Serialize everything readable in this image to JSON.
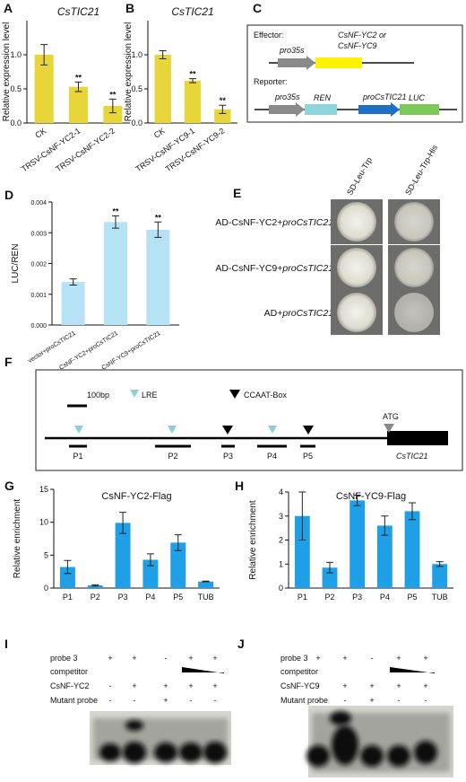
{
  "chart_data": [
    {
      "type": "bar",
      "panel": "A",
      "title": "CsTIC21",
      "y_label": "Relative expression level",
      "categories": [
        "CK",
        "TRSV-CsNF-YC2-1",
        "TRSV-CsNF-YC2-2"
      ],
      "values": [
        1.0,
        0.53,
        0.25
      ],
      "errors": [
        0.15,
        0.07,
        0.1
      ],
      "significance": [
        null,
        "**",
        "**"
      ],
      "color": "#e8d53a",
      "ylim": [
        0,
        1.5
      ],
      "yticks": [
        {
          "value": 0,
          "label": "0.0"
        },
        {
          "value": 0.5,
          "label": "0.5"
        },
        {
          "value": 1,
          "label": "1.0"
        }
      ]
    },
    {
      "type": "bar",
      "panel": "B",
      "title": "CsTIC21",
      "y_label": "Relative expression level",
      "categories": [
        "CK",
        "TRSV-CsNF-YC9-1",
        "TRSV-CsNF-YC9-2"
      ],
      "values": [
        1.0,
        0.62,
        0.2
      ],
      "errors": [
        0.06,
        0.03,
        0.06
      ],
      "significance": [
        null,
        "**",
        "**"
      ],
      "color": "#e8d53a",
      "ylim": [
        0,
        1.5
      ],
      "yticks": [
        {
          "value": 0,
          "label": "0.0"
        },
        {
          "value": 0.5,
          "label": "0.5"
        },
        {
          "value": 1,
          "label": "1.0"
        }
      ]
    },
    {
      "type": "bar",
      "panel": "D",
      "y_label": "LUC/REN",
      "categories": [
        "vector+proCsTIC21",
        "CsNF-YC2+proCsTIC21",
        "CsNF-YC9+proCsTIC21"
      ],
      "values": [
        0.0014,
        0.00335,
        0.0031
      ],
      "errors": [
        0.0001,
        0.0002,
        0.00025
      ],
      "significance": [
        null,
        "**",
        "**"
      ],
      "color": "#b5e3f5",
      "ylim": [
        0,
        0.004
      ],
      "yticks": [
        {
          "value": 0,
          "label": "0.000"
        },
        {
          "value": 0.001,
          "label": "0.001"
        },
        {
          "value": 0.002,
          "label": "0.002"
        },
        {
          "value": 0.003,
          "label": "0.003"
        },
        {
          "value": 0.004,
          "label": "0.004"
        }
      ]
    },
    {
      "type": "bar",
      "panel": "G",
      "title": "CsNF-YC2-Flag",
      "y_label": "Relative enrichment",
      "categories": [
        "P1",
        "P2",
        "P3",
        "P4",
        "P5",
        "TUB"
      ],
      "values": [
        3.2,
        0.4,
        9.9,
        4.3,
        6.9,
        1.0
      ],
      "errors": [
        1.0,
        0.1,
        1.6,
        0.9,
        1.2,
        0.05
      ],
      "color": "#1f9fe6",
      "ylim": [
        0,
        15
      ],
      "yticks": [
        0,
        5,
        10,
        15
      ]
    },
    {
      "type": "bar",
      "panel": "H",
      "title": "CsNF-YC9-Flag",
      "y_label": "Relative enrichment",
      "categories": [
        "P1",
        "P2",
        "P3",
        "P4",
        "P5",
        "TUB"
      ],
      "values": [
        3.0,
        0.85,
        3.65,
        2.6,
        3.2,
        1.0
      ],
      "errors": [
        1.0,
        0.22,
        0.22,
        0.4,
        0.35,
        0.1
      ],
      "color": "#1f9fe6",
      "ylim": [
        0,
        4
      ],
      "yticks": [
        0,
        1,
        2,
        3,
        4
      ]
    }
  ],
  "constructs": {
    "panel": "C",
    "effector": {
      "label": "Effector:",
      "promoter": "pro35s",
      "gene": [
        "CsNF-YC2 or",
        "CsNF-YC9"
      ]
    },
    "reporter": {
      "label": "Reporter:",
      "promoter": "pro35s",
      "gene": "REN",
      "promoter2": "proCsTIC21",
      "reporter_gene": "LUC"
    }
  },
  "yeast_assay": {
    "panel": "E",
    "columns": [
      "SD-Leu-Trp",
      "SD-Leu-Trp-His"
    ],
    "rows": [
      {
        "prefix": "AD-CsNF-YC2+",
        "promoter": "proCsTIC21"
      },
      {
        "prefix": "AD-CsNF-YC9+",
        "promoter": "proCsTIC21"
      },
      {
        "prefix": "AD+",
        "promoter": "proCsTIC21"
      }
    ]
  },
  "promoter_map": {
    "panel": "F",
    "scale": "100bp",
    "legend": [
      "LRE",
      "CCAAT-Box"
    ],
    "start_codon": "ATG",
    "gene": "CsTIC21",
    "probes": [
      "P1",
      "P2",
      "P3",
      "P4",
      "P5"
    ]
  },
  "emsa": [
    {
      "panel": "I",
      "rows": [
        {
          "label": "probe 3",
          "signs": [
            "+",
            "+",
            "-",
            "+",
            "+"
          ]
        },
        {
          "label": "competitor"
        },
        {
          "label": "CsNF-YC2",
          "signs": [
            "-",
            "+",
            "+",
            "+",
            "+"
          ]
        },
        {
          "label": "Mutant probe",
          "signs": [
            "-",
            "-",
            "+",
            "-",
            "-"
          ]
        }
      ]
    },
    {
      "panel": "J",
      "rows": [
        {
          "label": "probe 3",
          "signs": [
            "+",
            "+",
            "-",
            "+",
            "+"
          ]
        },
        {
          "label": "competitor"
        },
        {
          "label": "CsNF-YC9",
          "signs": [
            "-",
            "+",
            "+",
            "+",
            "+"
          ]
        },
        {
          "label": "Mutant probe",
          "signs": [
            "-",
            "-",
            "+",
            "-",
            "-"
          ]
        }
      ]
    }
  ]
}
